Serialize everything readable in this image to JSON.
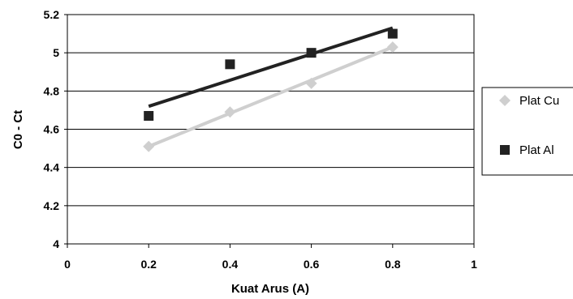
{
  "chart_data": {
    "type": "scatter",
    "xlabel": "Kuat Arus (A)",
    "ylabel": "C0 - Ct",
    "xlim": [
      0,
      1
    ],
    "ylim": [
      4,
      5.2
    ],
    "x_ticks": [
      0,
      0.2,
      0.4,
      0.6,
      0.8,
      1
    ],
    "y_ticks": [
      4,
      4.2,
      4.4,
      4.6,
      4.8,
      5,
      5.2
    ],
    "x_tick_labels": [
      "0",
      "0.2",
      "0.4",
      "0.6",
      "0.8",
      "1"
    ],
    "y_tick_labels": [
      "4",
      "4.2",
      "4.4",
      "4.6",
      "4.8",
      "5",
      "5.2"
    ],
    "grid": "horizontal",
    "legend_position": "right",
    "series": [
      {
        "name": "Plat Cu",
        "marker": "diamond",
        "color": "#cfcfcf",
        "x": [
          0.2,
          0.4,
          0.6,
          0.8
        ],
        "y": [
          4.51,
          4.69,
          4.84,
          5.03
        ],
        "trendline": {
          "x": [
            0.2,
            0.8
          ],
          "y": [
            4.51,
            5.03
          ]
        }
      },
      {
        "name": "Plat Al",
        "marker": "square",
        "color": "#222222",
        "x": [
          0.2,
          0.4,
          0.6,
          0.8
        ],
        "y": [
          4.67,
          4.94,
          5.0,
          5.1
        ],
        "trendline": {
          "x": [
            0.2,
            0.8
          ],
          "y": [
            4.72,
            5.13
          ]
        }
      }
    ]
  }
}
